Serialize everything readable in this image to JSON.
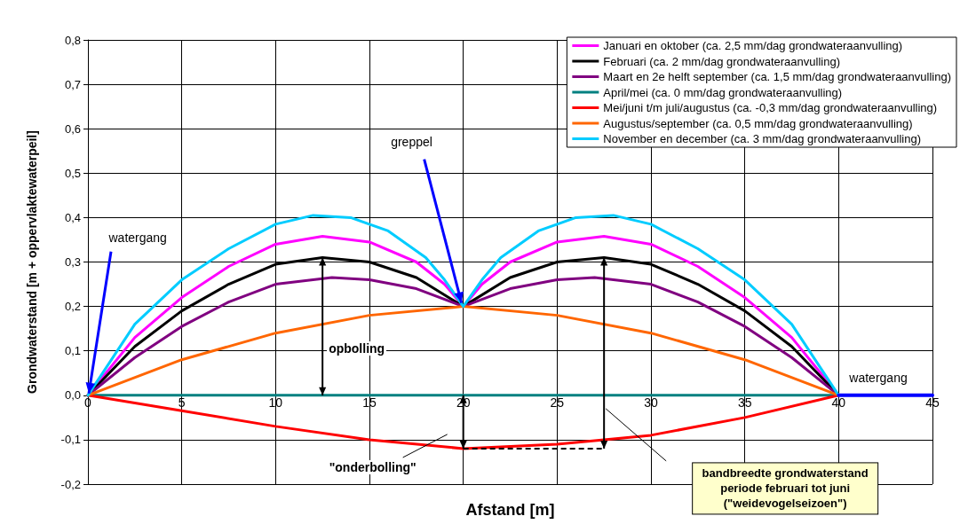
{
  "chart_data": {
    "type": "line",
    "xlabel": "Afstand [m]",
    "ylabel": "Grondwaterstand [m + oppervlaktewaterpeil]",
    "xlim": [
      0,
      45
    ],
    "xticks": [
      0,
      5,
      10,
      15,
      20,
      25,
      30,
      35,
      40,
      45
    ],
    "ylim": [
      -0.2,
      0.8
    ],
    "yticks": [
      {
        "value": -0.2,
        "label": "-0,2"
      },
      {
        "value": -0.1,
        "label": "-0,1"
      },
      {
        "value": 0,
        "label": "0,0"
      },
      {
        "value": 0.1,
        "label": "0,1"
      },
      {
        "value": 0.2,
        "label": "0,2"
      },
      {
        "value": 0.3,
        "label": "0,3"
      },
      {
        "value": 0.4,
        "label": "0,4"
      },
      {
        "value": 0.5,
        "label": "0,5"
      },
      {
        "value": 0.6,
        "label": "0,6"
      },
      {
        "value": 0.7,
        "label": "0,7"
      },
      {
        "value": 0.8,
        "label": "0,8"
      }
    ],
    "grid": true,
    "legend": "top right",
    "marker": "none",
    "line_style": "solid",
    "series": [
      {
        "name": "Januari en oktober (ca. 2,5 mm/dag grondwateraanvulling)",
        "color": "#ff00ff",
        "x": [
          0,
          2.5,
          5,
          7.5,
          10,
          12.5,
          15,
          17.5,
          19,
          20,
          21,
          22.5,
          25,
          27.5,
          30,
          32.5,
          35,
          37.5,
          40
        ],
        "values": [
          0,
          0.13,
          0.22,
          0.29,
          0.34,
          0.358,
          0.345,
          0.3,
          0.25,
          0.2,
          0.25,
          0.3,
          0.345,
          0.358,
          0.34,
          0.29,
          0.22,
          0.13,
          0
        ]
      },
      {
        "name": "Februari (ca. 2 mm/dag grondwateraanvulling)",
        "color": "#000000",
        "x": [
          0,
          2.5,
          5,
          7.5,
          10,
          12.5,
          15,
          17.5,
          20,
          22.5,
          25,
          27.5,
          30,
          32.5,
          35,
          37.5,
          40
        ],
        "values": [
          0,
          0.11,
          0.19,
          0.25,
          0.295,
          0.31,
          0.3,
          0.265,
          0.2,
          0.265,
          0.3,
          0.31,
          0.295,
          0.25,
          0.19,
          0.11,
          0
        ]
      },
      {
        "name": "Maart en 2e helft september (ca. 1,5 mm/dag grondwateraanvulling)",
        "color": "#800080",
        "x": [
          0,
          2.5,
          5,
          7.5,
          10,
          13,
          15,
          17.5,
          20,
          22.5,
          25,
          27,
          30,
          32.5,
          35,
          37.5,
          40
        ],
        "values": [
          0,
          0.085,
          0.155,
          0.21,
          0.25,
          0.265,
          0.26,
          0.24,
          0.2,
          0.24,
          0.26,
          0.265,
          0.25,
          0.21,
          0.155,
          0.085,
          0
        ]
      },
      {
        "name": "April/mei (ca. 0 mm/dag grondwateraanvulling)",
        "color": "#008080",
        "x": [
          0,
          40
        ],
        "values": [
          0,
          0
        ]
      },
      {
        "name": "Mei/juni t/m juli/augustus (ca. -0,3 mm/dag grondwateraanvulling)",
        "color": "#ff0000",
        "x": [
          0,
          5,
          10,
          15,
          20,
          25,
          30,
          35,
          40
        ],
        "values": [
          0,
          -0.035,
          -0.07,
          -0.1,
          -0.12,
          -0.11,
          -0.09,
          -0.05,
          0
        ]
      },
      {
        "name": "Augustus/september (ca. 0,5 mm/dag grondwateraanvulling)",
        "color": "#ff6600",
        "x": [
          0,
          5,
          10,
          15,
          20,
          25,
          30,
          35,
          40
        ],
        "values": [
          0,
          0.08,
          0.14,
          0.18,
          0.2,
          0.18,
          0.14,
          0.08,
          0
        ]
      },
      {
        "name": "November en december (ca. 3 mm/dag grondwateraanvulling)",
        "color": "#00ccff",
        "x": [
          0,
          2.5,
          5,
          7.5,
          10,
          12,
          14,
          16,
          18,
          19,
          20,
          21,
          22,
          24,
          26,
          28,
          30,
          32.5,
          35,
          37.5,
          40
        ],
        "values": [
          0,
          0.16,
          0.26,
          0.33,
          0.385,
          0.405,
          0.4,
          0.37,
          0.31,
          0.26,
          0.2,
          0.26,
          0.31,
          0.37,
          0.4,
          0.405,
          0.385,
          0.33,
          0.26,
          0.16,
          0
        ]
      },
      {
        "color": "#0000ff",
        "x": [
          40,
          45
        ],
        "values": [
          0,
          0
        ]
      }
    ],
    "annotations": [
      {
        "text": "watergang",
        "x": 0,
        "y": 0
      },
      {
        "text": "greppel",
        "x": 20,
        "y": 0.2
      },
      "opbolling",
      "\"onderbolling\"",
      {
        "text": "watergang",
        "x": 40,
        "y": 0
      },
      "bandbreedte grondwaterstand periode februari tot juni (\"weidevogelseizoen\")"
    ]
  }
}
